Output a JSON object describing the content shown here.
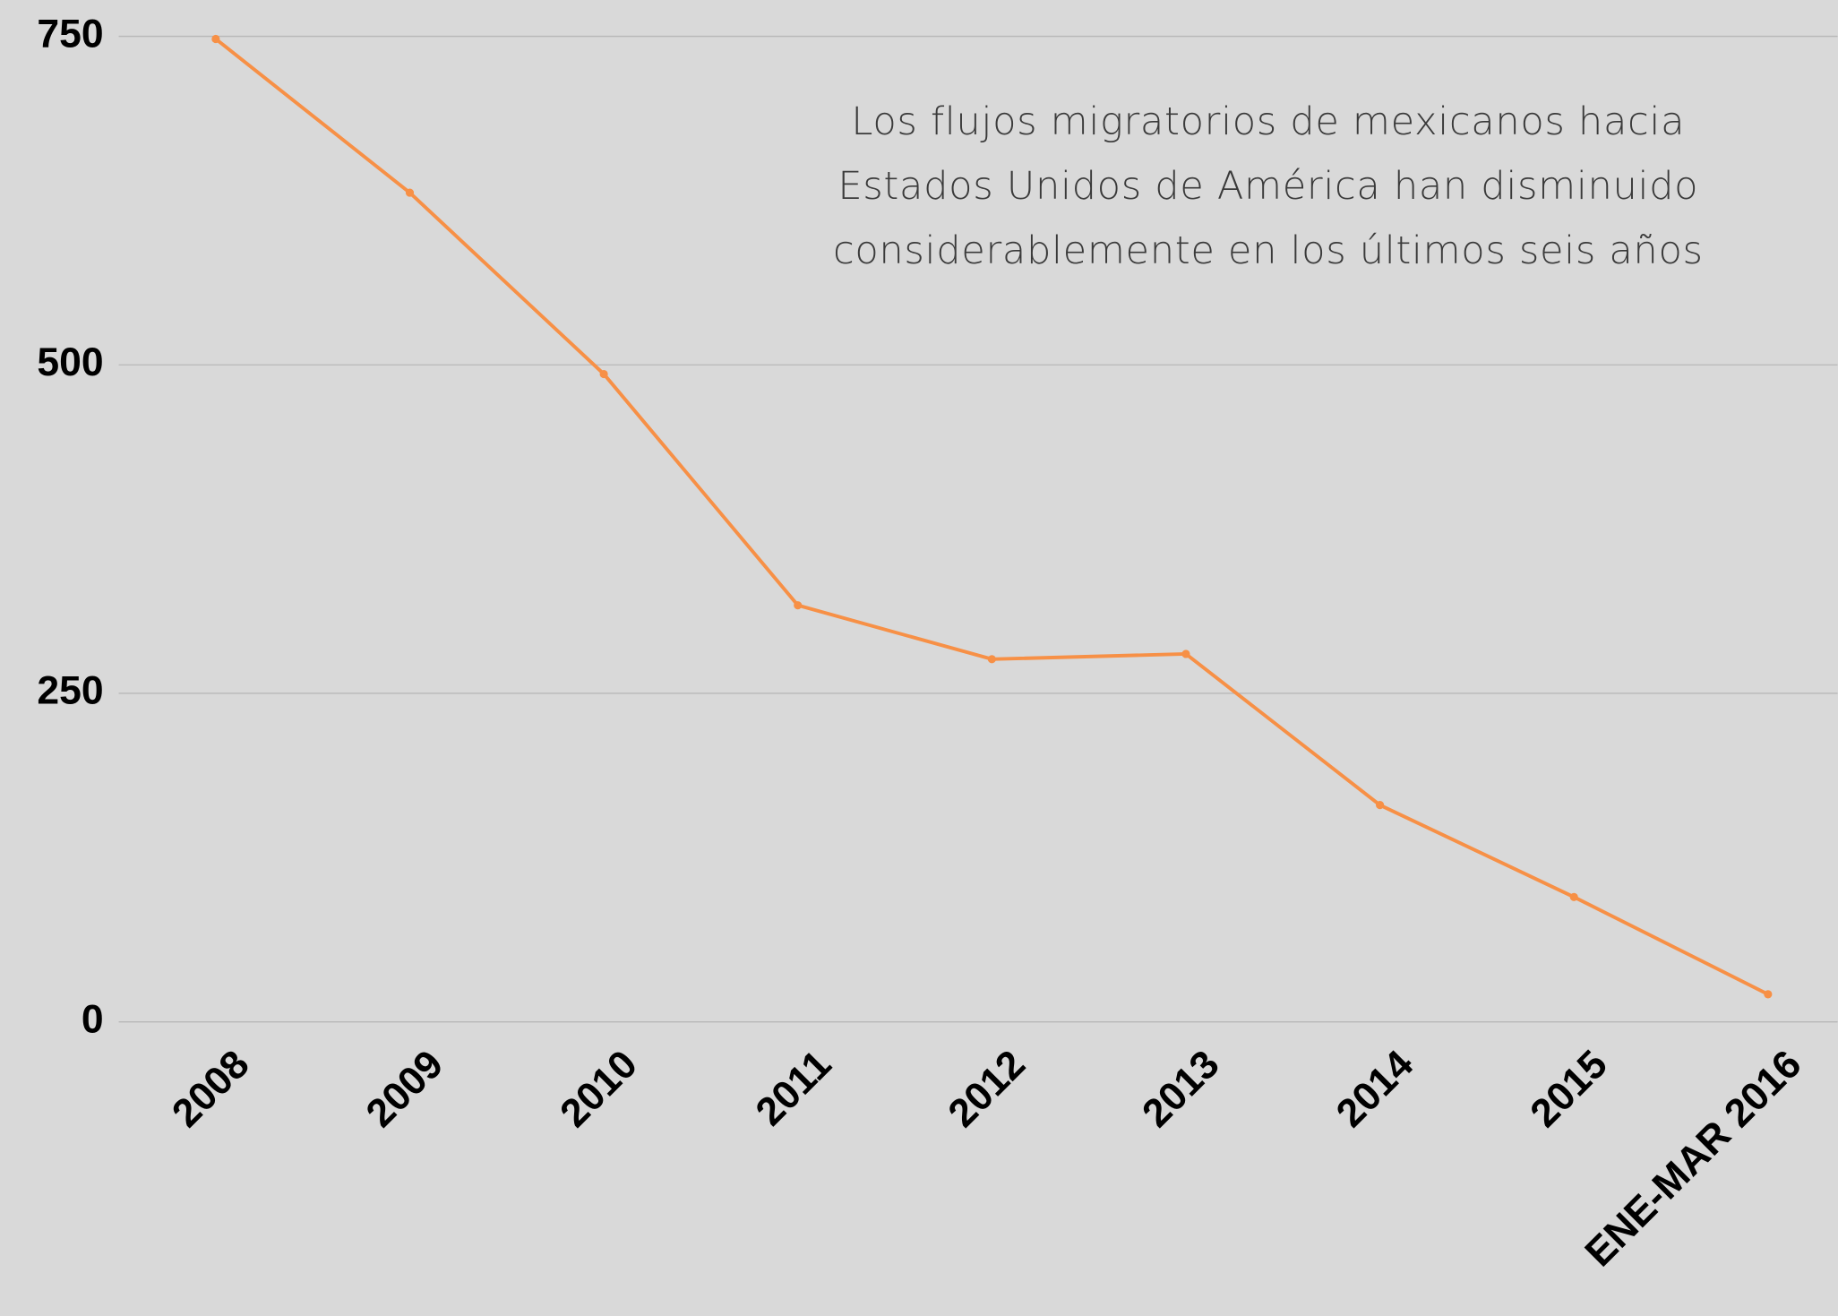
{
  "chart_data": {
    "type": "line",
    "annotation": [
      "Los flujos migratorios de mexicanos hacia",
      "Estados Unidos de América han disminuido",
      "considerablemente en los últimos seis años"
    ],
    "categories": [
      "2008",
      "2009",
      "2010",
      "2011",
      "2012",
      "2013",
      "2014",
      "2015",
      "ENE-MAR 2016"
    ],
    "series": [
      {
        "color": "#f79046",
        "values": [
          748,
          631,
          493,
          317,
          276,
          280,
          165,
          95,
          21
        ]
      }
    ],
    "ylim": [
      0,
      750
    ],
    "yticks": [
      0,
      250,
      500,
      750
    ],
    "grid": true
  }
}
